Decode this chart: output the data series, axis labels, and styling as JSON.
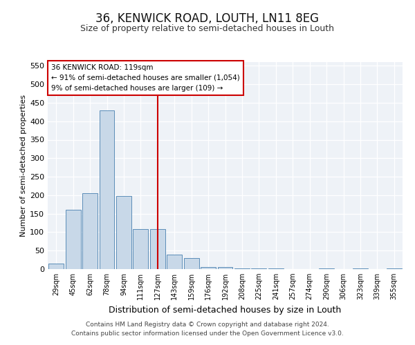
{
  "title": "36, KENWICK ROAD, LOUTH, LN11 8EG",
  "subtitle": "Size of property relative to semi-detached houses in Louth",
  "xlabel": "Distribution of semi-detached houses by size in Louth",
  "ylabel": "Number of semi-detached properties",
  "categories": [
    "29sqm",
    "45sqm",
    "62sqm",
    "78sqm",
    "94sqm",
    "111sqm",
    "127sqm",
    "143sqm",
    "159sqm",
    "176sqm",
    "192sqm",
    "208sqm",
    "225sqm",
    "241sqm",
    "257sqm",
    "274sqm",
    "290sqm",
    "306sqm",
    "323sqm",
    "339sqm",
    "355sqm"
  ],
  "values": [
    15,
    160,
    205,
    430,
    197,
    109,
    109,
    40,
    30,
    5,
    5,
    2,
    2,
    2,
    0,
    0,
    2,
    0,
    2,
    0,
    2
  ],
  "bar_color": "#c8d8e8",
  "bar_edge_color": "#5b8db8",
  "vline_x_index": 6,
  "vline_color": "#cc0000",
  "annotation_box_text": "36 KENWICK ROAD: 119sqm\n← 91% of semi-detached houses are smaller (1,054)\n9% of semi-detached houses are larger (109) →",
  "annotation_box_color": "#cc0000",
  "ylim": [
    0,
    560
  ],
  "yticks": [
    0,
    50,
    100,
    150,
    200,
    250,
    300,
    350,
    400,
    450,
    500,
    550
  ],
  "bg_color": "#eef2f7",
  "footer_line1": "Contains HM Land Registry data © Crown copyright and database right 2024.",
  "footer_line2": "Contains public sector information licensed under the Open Government Licence v3.0.",
  "title_fontsize": 12,
  "subtitle_fontsize": 9,
  "ylabel_fontsize": 8,
  "xlabel_fontsize": 9,
  "xtick_fontsize": 7,
  "ytick_fontsize": 8,
  "footer_fontsize": 6.5
}
